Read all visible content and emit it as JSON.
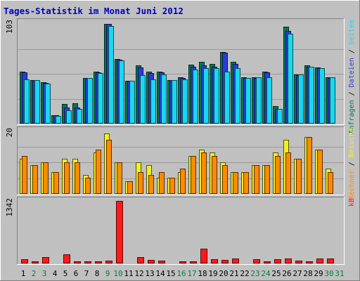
{
  "title": "Tages-Statistik im Monat Juni 2012",
  "colors": {
    "background": "#c0c0c0",
    "frame_light": "#ffffff",
    "frame_dark": "#808080",
    "gridline": "#9a9a9a",
    "title": "#0000c0",
    "anfragen": "#007a4a",
    "dateien": "#2a3cd8",
    "seiten": "#18d8f0",
    "besuche": "#f0f020",
    "rechner": "#ff8a00",
    "kb": "#ff1a1a",
    "day_normal": "#000000",
    "day_weekend": "#00803a"
  },
  "chart_data": [
    {
      "type": "bar",
      "name": "top",
      "ymax_label": "103",
      "ylim": [
        0,
        103
      ],
      "right_label": [
        {
          "text": "Anfragen",
          "color": "#007a4a"
        },
        {
          "text": " / ",
          "color": "#000000"
        },
        {
          "text": "Dateien",
          "color": "#2a3cd8"
        },
        {
          "text": " / ",
          "color": "#000000"
        },
        {
          "text": "Seiten",
          "color": "#18d8f0"
        }
      ],
      "categories": [
        "1",
        "2",
        "3",
        "4",
        "5",
        "6",
        "7",
        "8",
        "9",
        "10",
        "11",
        "12",
        "13",
        "14",
        "15",
        "16",
        "17",
        "18",
        "19",
        "20",
        "21",
        "22",
        "23",
        "24",
        "25",
        "26",
        "27",
        "28",
        "29",
        "30",
        "31"
      ],
      "series": [
        {
          "name": "Anfragen",
          "color": "#007a4a",
          "values": [
            54,
            45,
            43,
            9,
            20,
            21,
            47,
            54,
            103,
            67,
            44,
            60,
            54,
            54,
            45,
            48,
            61,
            64,
            62,
            74,
            64,
            48,
            48,
            54,
            18,
            100,
            51,
            60,
            58,
            48,
            0
          ]
        },
        {
          "name": "Dateien",
          "color": "#2a3cd8",
          "values": [
            53,
            45,
            42,
            9,
            17,
            17,
            47,
            53,
            103,
            66,
            44,
            58,
            52,
            53,
            45,
            47,
            59,
            60,
            59,
            73,
            62,
            47,
            47,
            53,
            15,
            96,
            50,
            59,
            57,
            47,
            0
          ]
        },
        {
          "name": "Seiten",
          "color": "#18d8f0",
          "values": [
            46,
            45,
            41,
            8,
            14,
            15,
            47,
            52,
            101,
            65,
            44,
            50,
            46,
            51,
            45,
            46,
            56,
            57,
            57,
            54,
            57,
            47,
            48,
            48,
            15,
            93,
            51,
            59,
            57,
            48,
            0
          ]
        }
      ]
    },
    {
      "type": "bar",
      "name": "middle",
      "ymax_label": "20",
      "ylim": [
        0,
        20
      ],
      "right_label": [
        {
          "text": "Rechner",
          "color": "#ff8a00"
        },
        {
          "text": " / ",
          "color": "#000000"
        },
        {
          "text": "Besuche",
          "color": "#f0f020"
        }
      ],
      "categories": [
        "1",
        "2",
        "3",
        "4",
        "5",
        "6",
        "7",
        "8",
        "9",
        "10",
        "11",
        "12",
        "13",
        "14",
        "15",
        "16",
        "17",
        "18",
        "19",
        "20",
        "21",
        "22",
        "23",
        "24",
        "25",
        "26",
        "27",
        "28",
        "29",
        "30",
        "31"
      ],
      "series": [
        {
          "name": "Besuche",
          "color": "#f0f020",
          "values": [
            11,
            9,
            10,
            7,
            11,
            11,
            6,
            13,
            19,
            10,
            4,
            10,
            9,
            5,
            5,
            7,
            12,
            14,
            13,
            10,
            7,
            7,
            9,
            9,
            13,
            17,
            11,
            18,
            14,
            8,
            0
          ]
        },
        {
          "name": "Rechner",
          "color": "#ff8a00",
          "values": [
            12,
            9,
            10,
            7,
            10,
            10,
            5,
            14,
            17,
            10,
            4,
            7,
            6,
            7,
            5,
            8,
            12,
            13,
            12,
            9,
            7,
            7,
            9,
            9,
            12,
            13,
            11,
            18,
            14,
            7,
            0
          ]
        }
      ]
    },
    {
      "type": "bar",
      "name": "bottom",
      "ymax_label": "1342",
      "ylim": [
        0,
        1342
      ],
      "right_label": [
        {
          "text": "kB",
          "color": "#ff1a1a"
        }
      ],
      "categories": [
        "1",
        "2",
        "3",
        "4",
        "5",
        "6",
        "7",
        "8",
        "9",
        "10",
        "11",
        "12",
        "13",
        "14",
        "15",
        "16",
        "17",
        "18",
        "19",
        "20",
        "21",
        "22",
        "23",
        "24",
        "25",
        "26",
        "27",
        "28",
        "29",
        "30",
        "31"
      ],
      "series": [
        {
          "name": "kB",
          "color": "#ff1a1a",
          "values": [
            90,
            50,
            130,
            20,
            190,
            50,
            40,
            50,
            55,
            1342,
            20,
            130,
            70,
            55,
            20,
            40,
            50,
            320,
            90,
            75,
            100,
            20,
            90,
            45,
            90,
            100,
            55,
            45,
            110,
            110,
            0
          ]
        }
      ]
    }
  ],
  "days": [
    {
      "label": "1",
      "weekend": false
    },
    {
      "label": "2",
      "weekend": true
    },
    {
      "label": "3",
      "weekend": true
    },
    {
      "label": "4",
      "weekend": false
    },
    {
      "label": "5",
      "weekend": false
    },
    {
      "label": "6",
      "weekend": false
    },
    {
      "label": "7",
      "weekend": false
    },
    {
      "label": "8",
      "weekend": false
    },
    {
      "label": "9",
      "weekend": true
    },
    {
      "label": "10",
      "weekend": true
    },
    {
      "label": "11",
      "weekend": false
    },
    {
      "label": "12",
      "weekend": false
    },
    {
      "label": "13",
      "weekend": false
    },
    {
      "label": "14",
      "weekend": false
    },
    {
      "label": "15",
      "weekend": false
    },
    {
      "label": "16",
      "weekend": true
    },
    {
      "label": "17",
      "weekend": true
    },
    {
      "label": "18",
      "weekend": false
    },
    {
      "label": "19",
      "weekend": false
    },
    {
      "label": "20",
      "weekend": false
    },
    {
      "label": "21",
      "weekend": false
    },
    {
      "label": "22",
      "weekend": false
    },
    {
      "label": "23",
      "weekend": true
    },
    {
      "label": "24",
      "weekend": true
    },
    {
      "label": "25",
      "weekend": false
    },
    {
      "label": "26",
      "weekend": false
    },
    {
      "label": "27",
      "weekend": false
    },
    {
      "label": "28",
      "weekend": false
    },
    {
      "label": "29",
      "weekend": false
    },
    {
      "label": "30",
      "weekend": true
    },
    {
      "label": "31",
      "weekend": true
    }
  ]
}
